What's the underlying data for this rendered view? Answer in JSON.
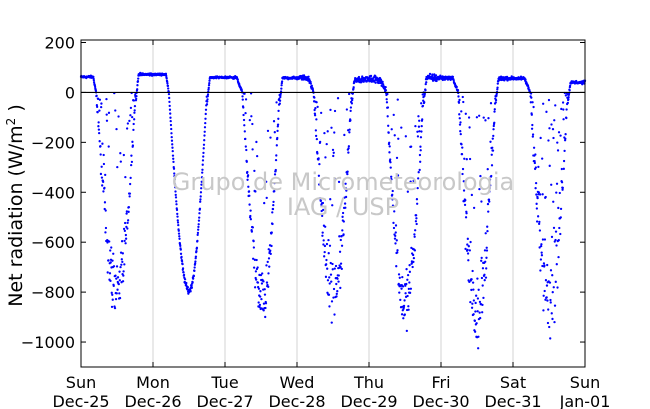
{
  "chart_data": {
    "type": "scatter",
    "ylabel": "Net radiation (W/m",
    "ylabel_sup": "2",
    "ylabel_end": " )",
    "ylim": [
      -1100,
      210
    ],
    "xlim": [
      0,
      7
    ],
    "yticks": [
      200,
      0,
      -200,
      -400,
      -600,
      -800,
      -1000
    ],
    "ytick_labels": [
      "200",
      "0",
      "−200",
      "−400",
      "−600",
      "−800",
      "−1000"
    ],
    "xticks": [
      {
        "x": 0,
        "day": "Sun",
        "date": "Dec-25"
      },
      {
        "x": 1,
        "day": "Mon",
        "date": "Dec-26"
      },
      {
        "x": 2,
        "day": "Tue",
        "date": "Dec-27"
      },
      {
        "x": 3,
        "day": "Wed",
        "date": "Dec-28"
      },
      {
        "x": 4,
        "day": "Thu",
        "date": "Dec-29"
      },
      {
        "x": 5,
        "day": "Fri",
        "date": "Dec-30"
      },
      {
        "x": 6,
        "day": "Sat",
        "date": "Dec-31"
      },
      {
        "x": 7,
        "day": "Sun",
        "date": "Jan-01"
      }
    ],
    "grid": "vertical",
    "zero_line": true,
    "marker_color": "#0000ff",
    "days": [
      {
        "night": 62,
        "base": 0.17,
        "sunset": 0.21,
        "peak": 0.5,
        "sunrise": 0.76,
        "min": -790,
        "noise": 110,
        "day_noise": 4
      },
      {
        "night": 72,
        "base": 1.18,
        "sunset": 1.22,
        "peak": 1.5,
        "sunrise": 1.75,
        "min": -795,
        "noise": 10,
        "day_noise": 3
      },
      {
        "night": 60,
        "base": 2.16,
        "sunset": 2.24,
        "peak": 2.52,
        "sunrise": 2.76,
        "min": -830,
        "noise": 85,
        "day_noise": 4
      },
      {
        "night": 58,
        "base": 3.16,
        "sunset": 3.23,
        "peak": 3.51,
        "sunrise": 3.76,
        "min": -800,
        "noise": 120,
        "day_noise": 8
      },
      {
        "night": 52,
        "base": 4.16,
        "sunset": 4.24,
        "peak": 4.5,
        "sunrise": 4.76,
        "min": -830,
        "noise": 90,
        "day_noise": 12
      },
      {
        "night": 58,
        "base": 5.16,
        "sunset": 5.24,
        "peak": 5.5,
        "sunrise": 5.76,
        "min": -860,
        "noise": 150,
        "day_noise": 6
      },
      {
        "night": 56,
        "base": 6.16,
        "sunset": 6.24,
        "peak": 6.5,
        "sunrise": 6.76,
        "min": -800,
        "noise": 180,
        "day_noise": 5
      }
    ],
    "last_night": 40
  },
  "watermark": {
    "line1": "Grupo de Micrometeorologia",
    "line2": "IAG / USP"
  }
}
